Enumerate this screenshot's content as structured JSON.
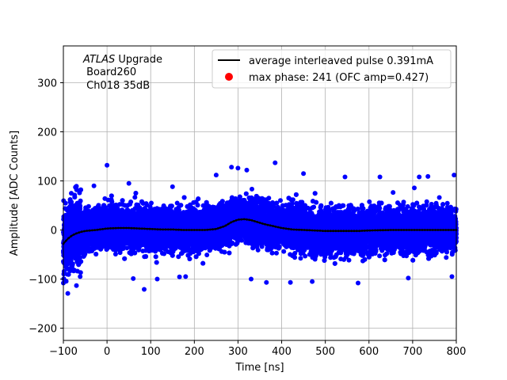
{
  "chart_data": {
    "type": "scatter",
    "title": "",
    "xlabel": "Time [ns]",
    "ylabel": "Amplitude [ADC Counts]",
    "xlim": [
      -100,
      800
    ],
    "ylim": [
      -225,
      375
    ],
    "xticks": [
      -100,
      0,
      100,
      200,
      300,
      400,
      500,
      600,
      700,
      800
    ],
    "yticks": [
      -200,
      -100,
      0,
      100,
      200,
      300
    ],
    "grid": true,
    "legend_position": "top-right",
    "annotation_lines": [
      {
        "italic": "ATLAS",
        "rest": " Upgrade"
      },
      {
        "italic": "",
        "rest": " Board260"
      },
      {
        "italic": "",
        "rest": " Ch018 35dB"
      }
    ],
    "series": [
      {
        "name": "average interleaved pulse 0.391mA",
        "kind": "line",
        "color": "#000000",
        "points": [
          [
            -100,
            -28
          ],
          [
            -90,
            -18
          ],
          [
            -80,
            -11
          ],
          [
            -70,
            -7
          ],
          [
            -60,
            -4
          ],
          [
            -50,
            -2
          ],
          [
            -25,
            0
          ],
          [
            0,
            3
          ],
          [
            25,
            4
          ],
          [
            50,
            4
          ],
          [
            75,
            3
          ],
          [
            100,
            2
          ],
          [
            125,
            1
          ],
          [
            150,
            1
          ],
          [
            175,
            0
          ],
          [
            200,
            0
          ],
          [
            225,
            0
          ],
          [
            250,
            2
          ],
          [
            270,
            8
          ],
          [
            285,
            16
          ],
          [
            300,
            21
          ],
          [
            315,
            22
          ],
          [
            330,
            20
          ],
          [
            345,
            16
          ],
          [
            360,
            12
          ],
          [
            380,
            8
          ],
          [
            400,
            4
          ],
          [
            425,
            1
          ],
          [
            450,
            0
          ],
          [
            475,
            -1
          ],
          [
            500,
            -2
          ],
          [
            525,
            -2
          ],
          [
            550,
            -2
          ],
          [
            575,
            -2
          ],
          [
            600,
            -1
          ],
          [
            650,
            0
          ],
          [
            700,
            0
          ],
          [
            750,
            0
          ],
          [
            800,
            0
          ]
        ]
      },
      {
        "name": "max phase: 241 (OFC amp=0.427)",
        "kind": "marker",
        "color": "#ff0000",
        "points": []
      },
      {
        "name": "",
        "kind": "scatter-cloud",
        "color": "#0000ff",
        "noise_sigma": 20,
        "points_per_ns": 20,
        "outliers": [
          [
            0,
            132
          ],
          [
            -70,
            89
          ],
          [
            -30,
            90
          ],
          [
            50,
            95
          ],
          [
            150,
            88
          ],
          [
            250,
            112
          ],
          [
            285,
            128
          ],
          [
            300,
            126
          ],
          [
            320,
            122
          ],
          [
            385,
            137
          ],
          [
            450,
            115
          ],
          [
            545,
            108
          ],
          [
            625,
            108
          ],
          [
            715,
            108
          ],
          [
            735,
            109
          ],
          [
            795,
            112
          ],
          [
            60,
            -99
          ],
          [
            115,
            -100
          ],
          [
            180,
            -95
          ],
          [
            330,
            -100
          ],
          [
            365,
            -107
          ],
          [
            420,
            -107
          ],
          [
            470,
            -105
          ],
          [
            575,
            -108
          ],
          [
            690,
            -98
          ],
          [
            790,
            -95
          ],
          [
            85,
            -121
          ]
        ]
      }
    ]
  }
}
